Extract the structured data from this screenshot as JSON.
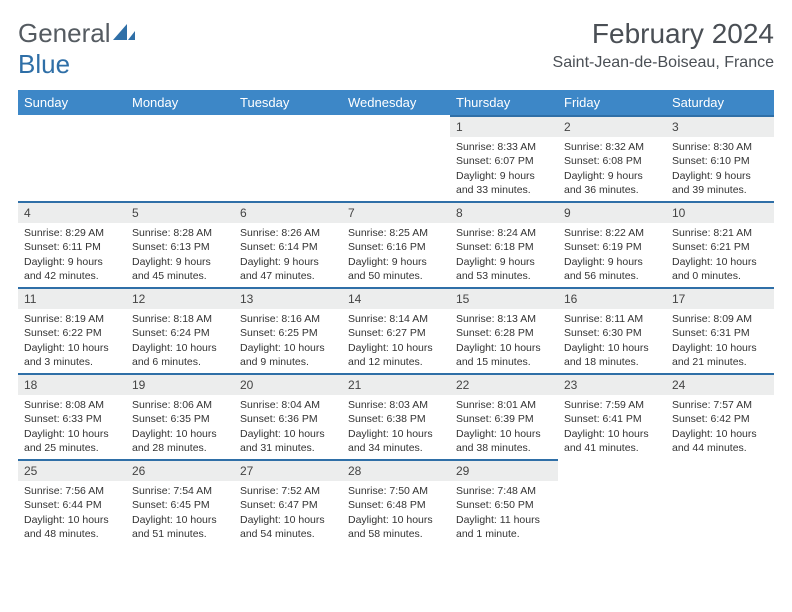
{
  "brand": {
    "part1": "General",
    "part2": "Blue"
  },
  "title": "February 2024",
  "location": "Saint-Jean-de-Boiseau, France",
  "colors": {
    "header_bg": "#3d87c7",
    "header_text": "#ffffff",
    "daynum_bg": "#eceded",
    "daynum_border": "#2f6fa7",
    "body_text": "#333333",
    "title_text": "#4a4f55",
    "logo_gray": "#555b61",
    "logo_blue": "#2f6fa7",
    "page_bg": "#ffffff"
  },
  "fonts": {
    "base_family": "Arial",
    "title_size_pt": 21,
    "location_size_pt": 12,
    "dow_size_pt": 10,
    "cell_size_pt": 8
  },
  "dow": [
    "Sunday",
    "Monday",
    "Tuesday",
    "Wednesday",
    "Thursday",
    "Friday",
    "Saturday"
  ],
  "weeks": [
    [
      null,
      null,
      null,
      null,
      {
        "n": "1",
        "sr": "Sunrise: 8:33 AM",
        "ss": "Sunset: 6:07 PM",
        "dl": "Daylight: 9 hours and 33 minutes."
      },
      {
        "n": "2",
        "sr": "Sunrise: 8:32 AM",
        "ss": "Sunset: 6:08 PM",
        "dl": "Daylight: 9 hours and 36 minutes."
      },
      {
        "n": "3",
        "sr": "Sunrise: 8:30 AM",
        "ss": "Sunset: 6:10 PM",
        "dl": "Daylight: 9 hours and 39 minutes."
      }
    ],
    [
      {
        "n": "4",
        "sr": "Sunrise: 8:29 AM",
        "ss": "Sunset: 6:11 PM",
        "dl": "Daylight: 9 hours and 42 minutes."
      },
      {
        "n": "5",
        "sr": "Sunrise: 8:28 AM",
        "ss": "Sunset: 6:13 PM",
        "dl": "Daylight: 9 hours and 45 minutes."
      },
      {
        "n": "6",
        "sr": "Sunrise: 8:26 AM",
        "ss": "Sunset: 6:14 PM",
        "dl": "Daylight: 9 hours and 47 minutes."
      },
      {
        "n": "7",
        "sr": "Sunrise: 8:25 AM",
        "ss": "Sunset: 6:16 PM",
        "dl": "Daylight: 9 hours and 50 minutes."
      },
      {
        "n": "8",
        "sr": "Sunrise: 8:24 AM",
        "ss": "Sunset: 6:18 PM",
        "dl": "Daylight: 9 hours and 53 minutes."
      },
      {
        "n": "9",
        "sr": "Sunrise: 8:22 AM",
        "ss": "Sunset: 6:19 PM",
        "dl": "Daylight: 9 hours and 56 minutes."
      },
      {
        "n": "10",
        "sr": "Sunrise: 8:21 AM",
        "ss": "Sunset: 6:21 PM",
        "dl": "Daylight: 10 hours and 0 minutes."
      }
    ],
    [
      {
        "n": "11",
        "sr": "Sunrise: 8:19 AM",
        "ss": "Sunset: 6:22 PM",
        "dl": "Daylight: 10 hours and 3 minutes."
      },
      {
        "n": "12",
        "sr": "Sunrise: 8:18 AM",
        "ss": "Sunset: 6:24 PM",
        "dl": "Daylight: 10 hours and 6 minutes."
      },
      {
        "n": "13",
        "sr": "Sunrise: 8:16 AM",
        "ss": "Sunset: 6:25 PM",
        "dl": "Daylight: 10 hours and 9 minutes."
      },
      {
        "n": "14",
        "sr": "Sunrise: 8:14 AM",
        "ss": "Sunset: 6:27 PM",
        "dl": "Daylight: 10 hours and 12 minutes."
      },
      {
        "n": "15",
        "sr": "Sunrise: 8:13 AM",
        "ss": "Sunset: 6:28 PM",
        "dl": "Daylight: 10 hours and 15 minutes."
      },
      {
        "n": "16",
        "sr": "Sunrise: 8:11 AM",
        "ss": "Sunset: 6:30 PM",
        "dl": "Daylight: 10 hours and 18 minutes."
      },
      {
        "n": "17",
        "sr": "Sunrise: 8:09 AM",
        "ss": "Sunset: 6:31 PM",
        "dl": "Daylight: 10 hours and 21 minutes."
      }
    ],
    [
      {
        "n": "18",
        "sr": "Sunrise: 8:08 AM",
        "ss": "Sunset: 6:33 PM",
        "dl": "Daylight: 10 hours and 25 minutes."
      },
      {
        "n": "19",
        "sr": "Sunrise: 8:06 AM",
        "ss": "Sunset: 6:35 PM",
        "dl": "Daylight: 10 hours and 28 minutes."
      },
      {
        "n": "20",
        "sr": "Sunrise: 8:04 AM",
        "ss": "Sunset: 6:36 PM",
        "dl": "Daylight: 10 hours and 31 minutes."
      },
      {
        "n": "21",
        "sr": "Sunrise: 8:03 AM",
        "ss": "Sunset: 6:38 PM",
        "dl": "Daylight: 10 hours and 34 minutes."
      },
      {
        "n": "22",
        "sr": "Sunrise: 8:01 AM",
        "ss": "Sunset: 6:39 PM",
        "dl": "Daylight: 10 hours and 38 minutes."
      },
      {
        "n": "23",
        "sr": "Sunrise: 7:59 AM",
        "ss": "Sunset: 6:41 PM",
        "dl": "Daylight: 10 hours and 41 minutes."
      },
      {
        "n": "24",
        "sr": "Sunrise: 7:57 AM",
        "ss": "Sunset: 6:42 PM",
        "dl": "Daylight: 10 hours and 44 minutes."
      }
    ],
    [
      {
        "n": "25",
        "sr": "Sunrise: 7:56 AM",
        "ss": "Sunset: 6:44 PM",
        "dl": "Daylight: 10 hours and 48 minutes."
      },
      {
        "n": "26",
        "sr": "Sunrise: 7:54 AM",
        "ss": "Sunset: 6:45 PM",
        "dl": "Daylight: 10 hours and 51 minutes."
      },
      {
        "n": "27",
        "sr": "Sunrise: 7:52 AM",
        "ss": "Sunset: 6:47 PM",
        "dl": "Daylight: 10 hours and 54 minutes."
      },
      {
        "n": "28",
        "sr": "Sunrise: 7:50 AM",
        "ss": "Sunset: 6:48 PM",
        "dl": "Daylight: 10 hours and 58 minutes."
      },
      {
        "n": "29",
        "sr": "Sunrise: 7:48 AM",
        "ss": "Sunset: 6:50 PM",
        "dl": "Daylight: 11 hours and 1 minute."
      },
      null,
      null
    ]
  ]
}
